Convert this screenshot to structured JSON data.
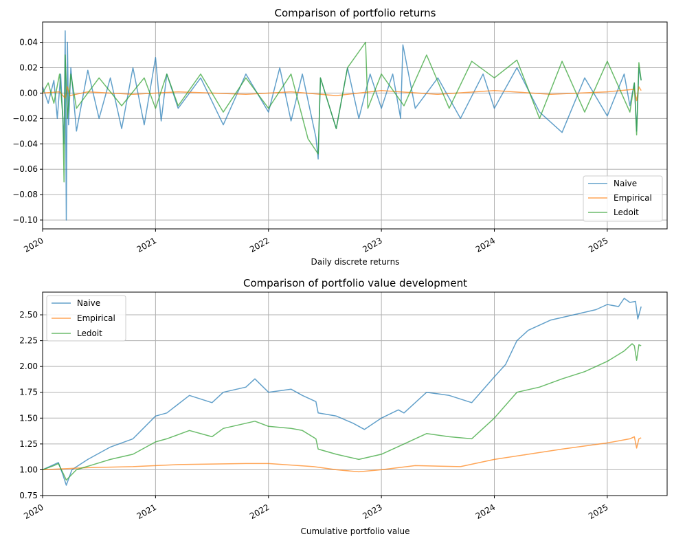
{
  "figure": {
    "background": "#ffffff"
  },
  "colors": {
    "Naive": "#1f77b4",
    "Empirical": "#ff7f0e",
    "Ledoit": "#2ca02c",
    "grid": "#b0b0b0"
  },
  "chart_data": [
    {
      "type": "line",
      "title": "Comparison of portfolio returns",
      "xlabel": "Daily discrete returns",
      "ylabel": "",
      "xlim": [
        2020.0,
        2025.53
      ],
      "ylim": [
        -0.107,
        0.056
      ],
      "xticks": [
        2020,
        2021,
        2022,
        2023,
        2024,
        2025
      ],
      "xtick_labels": [
        "2020",
        "2021",
        "2022",
        "2023",
        "2024",
        "2025"
      ],
      "yticks": [
        0.04,
        0.02,
        0.0,
        -0.02,
        -0.04,
        -0.06,
        -0.08,
        -0.1
      ],
      "ytick_labels": [
        "0.04",
        "0.02",
        "0.00",
        "−0.02",
        "−0.04",
        "−0.06",
        "−0.08",
        "−0.10"
      ],
      "grid": true,
      "legend": "lower-right",
      "series": [
        {
          "name": "Naive",
          "color": "#1f77b4",
          "x": [
            2020.0,
            2020.05,
            2020.1,
            2020.13,
            2020.16,
            2020.19,
            2020.2,
            2020.21,
            2020.22,
            2020.23,
            2020.25,
            2020.3,
            2020.4,
            2020.5,
            2020.6,
            2020.7,
            2020.8,
            2020.9,
            2021.0,
            2021.05,
            2021.1,
            2021.2,
            2021.4,
            2021.6,
            2021.8,
            2022.0,
            2022.1,
            2022.2,
            2022.3,
            2022.42,
            2022.44,
            2022.46,
            2022.6,
            2022.7,
            2022.8,
            2022.9,
            2023.0,
            2023.1,
            2023.17,
            2023.19,
            2023.3,
            2023.5,
            2023.7,
            2023.9,
            2024.0,
            2024.2,
            2024.4,
            2024.6,
            2024.8,
            2025.0,
            2025.15,
            2025.2,
            2025.24,
            2025.26,
            2025.28,
            2025.3
          ],
          "y": [
            0.005,
            -0.008,
            0.01,
            -0.02,
            0.015,
            -0.04,
            0.049,
            -0.1,
            0.04,
            -0.025,
            0.02,
            -0.03,
            0.018,
            -0.02,
            0.012,
            -0.028,
            0.02,
            -0.025,
            0.028,
            -0.022,
            0.015,
            -0.012,
            0.012,
            -0.025,
            0.015,
            -0.015,
            0.02,
            -0.022,
            0.015,
            -0.035,
            -0.052,
            0.012,
            -0.028,
            0.02,
            -0.02,
            0.015,
            -0.012,
            0.015,
            -0.02,
            0.038,
            -0.012,
            0.012,
            -0.02,
            0.015,
            -0.012,
            0.02,
            -0.015,
            -0.031,
            0.012,
            -0.018,
            0.015,
            -0.01,
            0.008,
            -0.03,
            0.02,
            0.01
          ]
        },
        {
          "name": "Empirical",
          "color": "#ff7f0e",
          "x": [
            2020.0,
            2020.15,
            2020.2,
            2020.22,
            2020.24,
            2020.4,
            2020.8,
            2021.2,
            2021.8,
            2022.2,
            2022.6,
            2023.0,
            2023.5,
            2024.0,
            2024.5,
            2025.0,
            2025.24,
            2025.26,
            2025.28,
            2025.3
          ],
          "y": [
            0.0,
            0.001,
            -0.004,
            0.005,
            -0.002,
            0.001,
            -0.001,
            0.001,
            -0.001,
            0.001,
            -0.002,
            0.002,
            -0.001,
            0.002,
            -0.001,
            0.001,
            0.003,
            -0.006,
            0.005,
            0.002
          ]
        },
        {
          "name": "Ledoit",
          "color": "#2ca02c",
          "x": [
            2020.0,
            2020.05,
            2020.1,
            2020.15,
            2020.18,
            2020.19,
            2020.2,
            2020.22,
            2020.25,
            2020.3,
            2020.5,
            2020.7,
            2020.9,
            2021.0,
            2021.1,
            2021.2,
            2021.4,
            2021.6,
            2021.8,
            2022.0,
            2022.2,
            2022.35,
            2022.44,
            2022.46,
            2022.6,
            2022.7,
            2022.86,
            2022.88,
            2023.0,
            2023.2,
            2023.4,
            2023.6,
            2023.8,
            2024.0,
            2024.2,
            2024.4,
            2024.6,
            2024.8,
            2025.0,
            2025.2,
            2025.24,
            2025.26,
            2025.28,
            2025.3
          ],
          "y": [
            0.0,
            0.008,
            -0.008,
            0.015,
            -0.02,
            -0.07,
            0.03,
            -0.02,
            0.015,
            -0.012,
            0.012,
            -0.01,
            0.012,
            -0.012,
            0.015,
            -0.01,
            0.015,
            -0.015,
            0.012,
            -0.012,
            0.015,
            -0.036,
            -0.048,
            0.012,
            -0.028,
            0.02,
            0.04,
            -0.012,
            0.015,
            -0.01,
            0.03,
            -0.012,
            0.025,
            0.012,
            0.026,
            -0.02,
            0.025,
            -0.015,
            0.025,
            -0.015,
            0.008,
            -0.033,
            0.024,
            0.01
          ]
        }
      ]
    },
    {
      "type": "line",
      "title": "Comparison of portfolio value development",
      "xlabel": "Cumulative portfolio value",
      "ylabel": "",
      "xlim": [
        2020.0,
        2025.53
      ],
      "ylim": [
        0.75,
        2.72
      ],
      "xticks": [
        2020,
        2021,
        2022,
        2023,
        2024,
        2025
      ],
      "xtick_labels": [
        "2020",
        "2021",
        "2022",
        "2023",
        "2024",
        "2025"
      ],
      "yticks": [
        2.5,
        2.25,
        2.0,
        1.75,
        1.5,
        1.25,
        1.0,
        0.75
      ],
      "ytick_labels": [
        "2.50",
        "2.25",
        "2.00",
        "1.75",
        "1.50",
        "1.25",
        "1.00",
        "0.75"
      ],
      "grid": true,
      "legend": "upper-left",
      "series": [
        {
          "name": "Naive",
          "color": "#1f77b4",
          "x": [
            2020.0,
            2020.1,
            2020.14,
            2020.18,
            2020.21,
            2020.26,
            2020.4,
            2020.6,
            2020.8,
            2021.0,
            2021.1,
            2021.3,
            2021.5,
            2021.6,
            2021.8,
            2021.88,
            2022.0,
            2022.2,
            2022.3,
            2022.42,
            2022.44,
            2022.6,
            2022.75,
            2022.85,
            2023.0,
            2023.15,
            2023.2,
            2023.4,
            2023.6,
            2023.8,
            2024.0,
            2024.1,
            2024.2,
            2024.3,
            2024.5,
            2024.7,
            2024.9,
            2025.0,
            2025.1,
            2025.15,
            2025.2,
            2025.25,
            2025.27,
            2025.3
          ],
          "y": [
            1.0,
            1.05,
            1.07,
            0.95,
            0.85,
            1.0,
            1.1,
            1.22,
            1.3,
            1.52,
            1.55,
            1.72,
            1.65,
            1.75,
            1.8,
            1.88,
            1.75,
            1.78,
            1.72,
            1.66,
            1.55,
            1.52,
            1.45,
            1.39,
            1.5,
            1.58,
            1.55,
            1.75,
            1.72,
            1.65,
            1.9,
            2.02,
            2.25,
            2.35,
            2.45,
            2.5,
            2.55,
            2.6,
            2.58,
            2.66,
            2.62,
            2.63,
            2.46,
            2.58
          ]
        },
        {
          "name": "Empirical",
          "color": "#ff7f0e",
          "x": [
            2020.0,
            2020.2,
            2020.4,
            2020.8,
            2021.2,
            2021.8,
            2022.0,
            2022.4,
            2022.6,
            2022.8,
            2023.0,
            2023.3,
            2023.7,
            2024.0,
            2024.3,
            2024.6,
            2025.0,
            2025.2,
            2025.24,
            2025.26,
            2025.28,
            2025.3
          ],
          "y": [
            1.0,
            1.01,
            1.02,
            1.03,
            1.05,
            1.06,
            1.06,
            1.03,
            1.0,
            0.98,
            1.0,
            1.04,
            1.03,
            1.1,
            1.15,
            1.2,
            1.26,
            1.3,
            1.32,
            1.21,
            1.3,
            1.31
          ]
        },
        {
          "name": "Ledoit",
          "color": "#2ca02c",
          "x": [
            2020.0,
            2020.1,
            2020.14,
            2020.18,
            2020.21,
            2020.3,
            2020.6,
            2020.8,
            2021.0,
            2021.1,
            2021.3,
            2021.5,
            2021.6,
            2021.88,
            2022.0,
            2022.2,
            2022.3,
            2022.42,
            2022.44,
            2022.6,
            2022.8,
            2023.0,
            2023.2,
            2023.4,
            2023.6,
            2023.8,
            2024.0,
            2024.2,
            2024.4,
            2024.6,
            2024.8,
            2025.0,
            2025.15,
            2025.22,
            2025.24,
            2025.26,
            2025.28,
            2025.3
          ],
          "y": [
            1.0,
            1.04,
            1.06,
            0.97,
            0.9,
            1.0,
            1.1,
            1.15,
            1.27,
            1.3,
            1.38,
            1.32,
            1.4,
            1.47,
            1.42,
            1.4,
            1.38,
            1.3,
            1.2,
            1.15,
            1.1,
            1.15,
            1.25,
            1.35,
            1.32,
            1.3,
            1.5,
            1.75,
            1.8,
            1.88,
            1.95,
            2.05,
            2.15,
            2.22,
            2.2,
            2.06,
            2.21,
            2.2
          ]
        }
      ]
    }
  ]
}
